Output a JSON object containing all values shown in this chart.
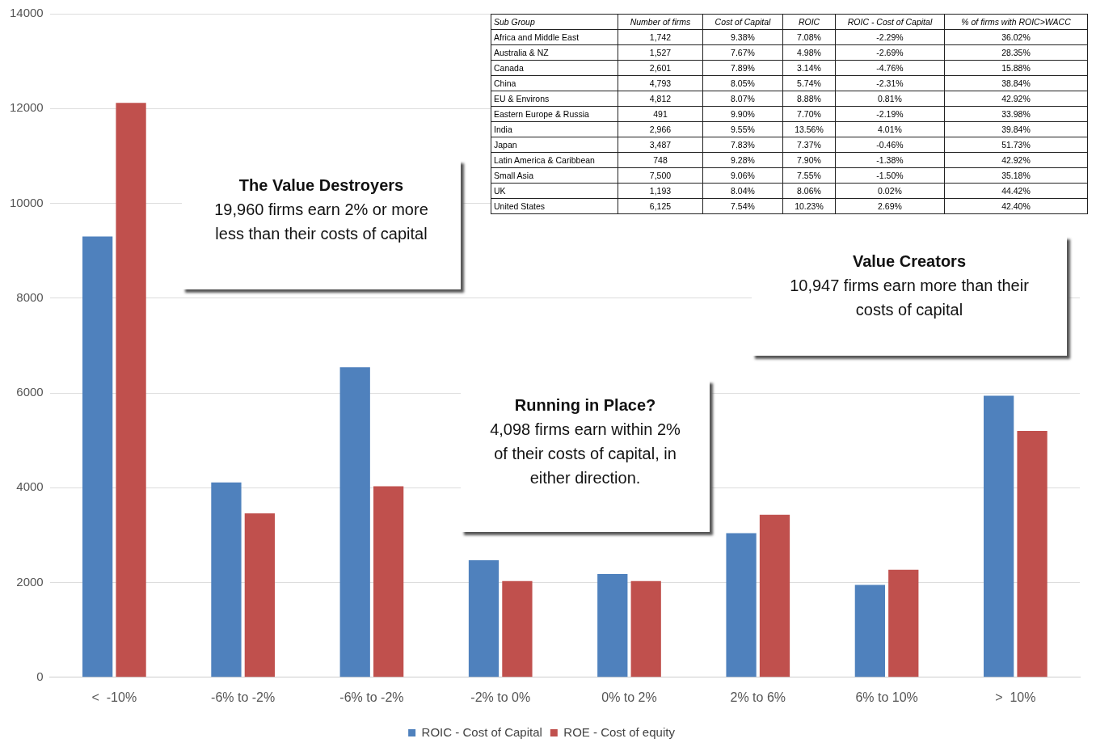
{
  "chart_data": [
    {
      "type": "bar",
      "categories": [
        "<  -10%",
        "-6% to -2%",
        "-6% to -2%",
        "-2% to 0%",
        "0% to 2%",
        "2% to 6%",
        "6% to 10%",
        ">  10%"
      ],
      "series": [
        {
          "name": "ROIC - Cost of Capital",
          "color": "#4f81bd",
          "values": [
            9300,
            4110,
            6540,
            2470,
            2180,
            3040,
            1950,
            5940
          ]
        },
        {
          "name": "ROE - Cost of equity",
          "color": "#c0504d",
          "values": [
            12120,
            3460,
            4030,
            2030,
            2030,
            3430,
            2270,
            5200
          ]
        }
      ],
      "ylim": [
        0,
        14000
      ],
      "yticks": [
        0,
        2000,
        4000,
        6000,
        8000,
        10000,
        12000,
        14000
      ],
      "grid": "y",
      "legend": "bottom",
      "annotations": [
        "The Value Destroyers\n19,960 firms earn 2% or more less than their costs of capital",
        "Running in Place?\n4,098 firms earn within 2% of their costs of capital, in either direction.",
        "Value Creators\n10,947 firms earn more than their costs of capital"
      ]
    },
    {
      "type": "other",
      "ylabel": "Sub Group",
      "categories": [
        "Number of firms",
        "Cost of Capital",
        "ROIC",
        "ROIC - Cost of Capital",
        "% of firms with ROIC>WACC"
      ],
      "y_categories": [
        "Africa and Middle East",
        "Australia & NZ",
        "Canada",
        "China",
        "EU & Environs",
        "Eastern Europe & Russia",
        "India",
        "Japan",
        "Latin America & Caribbean",
        "Small Asia",
        "UK",
        "United States"
      ],
      "cell_labels": [
        [
          "1,742",
          "9.38%",
          "7.08%",
          "-2.29%",
          "36.02%"
        ],
        [
          "1,527",
          "7.67%",
          "4.98%",
          "-2.69%",
          "28.35%"
        ],
        [
          "2,601",
          "7.89%",
          "3.14%",
          "-4.76%",
          "15.88%"
        ],
        [
          "4,793",
          "8.05%",
          "5.74%",
          "-2.31%",
          "38.84%"
        ],
        [
          "4,812",
          "8.07%",
          "8.88%",
          "0.81%",
          "42.92%"
        ],
        [
          "491",
          "9.90%",
          "7.70%",
          "-2.19%",
          "33.98%"
        ],
        [
          "2,966",
          "9.55%",
          "13.56%",
          "4.01%",
          "39.84%"
        ],
        [
          "3,487",
          "7.83%",
          "7.37%",
          "-0.46%",
          "51.73%"
        ],
        [
          "748",
          "9.28%",
          "7.90%",
          "-1.38%",
          "42.92%"
        ],
        [
          "7,500",
          "9.06%",
          "7.55%",
          "-1.50%",
          "35.18%"
        ],
        [
          "1,193",
          "8.04%",
          "8.06%",
          "0.02%",
          "44.42%"
        ],
        [
          "6,125",
          "7.54%",
          "10.23%",
          "2.69%",
          "42.40%"
        ]
      ]
    }
  ]
}
